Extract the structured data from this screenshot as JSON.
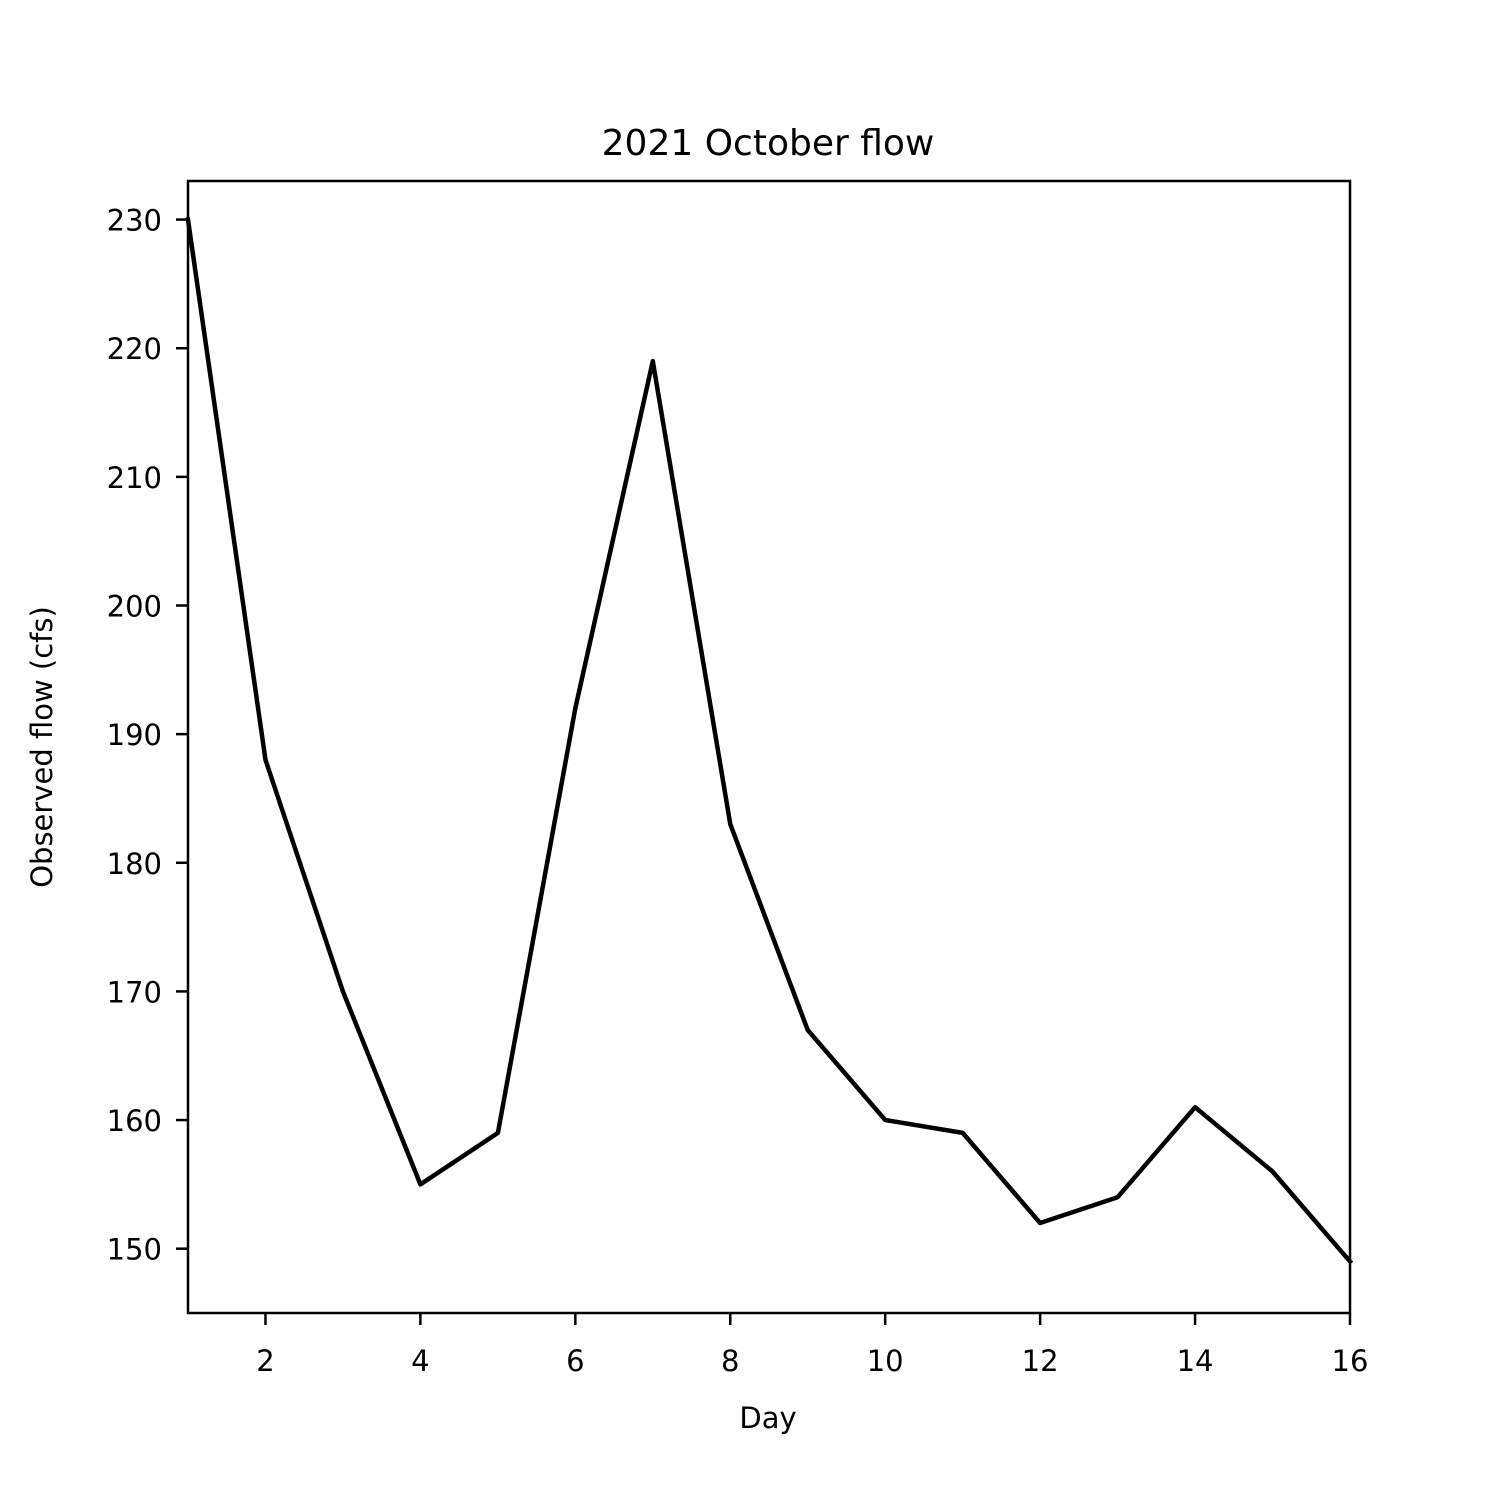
{
  "chart_data": {
    "type": "line",
    "title": "2021 October flow",
    "xlabel": "Day",
    "ylabel": "Observed flow (cfs)",
    "xlim": [
      1,
      16
    ],
    "ylim": [
      145,
      233
    ],
    "xticks": [
      2,
      4,
      6,
      8,
      10,
      12,
      14,
      16
    ],
    "yticks": [
      150,
      160,
      170,
      180,
      190,
      200,
      210,
      220,
      230
    ],
    "grid": false,
    "series": [
      {
        "color": "#000000",
        "x": [
          1,
          2,
          3,
          4,
          5,
          6,
          7,
          8,
          9,
          10,
          11,
          12,
          13,
          14,
          15,
          16
        ],
        "y": [
          230,
          188,
          170,
          155,
          159,
          192,
          219,
          183,
          167,
          160,
          159,
          152,
          154,
          161,
          156,
          149
        ]
      }
    ]
  }
}
